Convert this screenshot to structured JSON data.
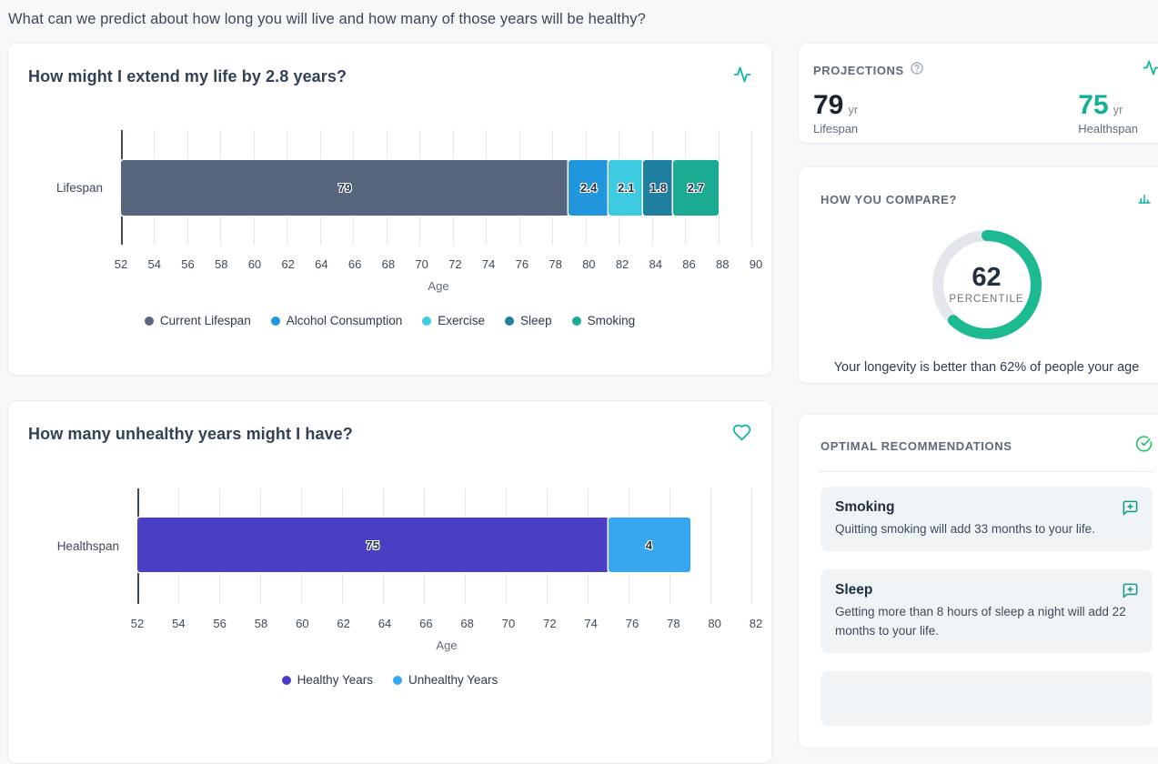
{
  "page": {
    "title": "What can we predict about how long you will live and how many of those years will be healthy?"
  },
  "colors": {
    "accent_teal": "#10b5a0",
    "gauge_green": "#1db992",
    "gauge_track": "#e3e7eb",
    "check_green": "#22c55e",
    "message_icon_teal": "#189b87",
    "healthspan_green": "#10b093"
  },
  "cards": {
    "extend": {
      "title": "How might I extend my life by 2.8 years?"
    },
    "unhealthy": {
      "title": "How many unhealthy years might I have?"
    }
  },
  "chart_data": [
    {
      "id": "extend",
      "type": "bar",
      "orientation": "horizontal-stacked",
      "category": "Lifespan",
      "xlabel": "Age",
      "x_min": 52,
      "x_max": 90,
      "x_step": 2,
      "grid": true,
      "legend_position": "bottom",
      "segments": [
        {
          "name": "Current Lifespan",
          "label": "79",
          "from": 52,
          "to": 79,
          "color": "#57657d"
        },
        {
          "name": "Alcohol Consumption",
          "label": "2.4",
          "from": 79,
          "to": 81.4,
          "color": "#2196dd"
        },
        {
          "name": "Exercise",
          "label": "2.1",
          "from": 81.4,
          "to": 83.5,
          "color": "#3ecbe2"
        },
        {
          "name": "Sleep",
          "label": "1.8",
          "from": 83.5,
          "to": 85.3,
          "color": "#1f7fa0"
        },
        {
          "name": "Smoking",
          "label": "2.7",
          "from": 85.3,
          "to": 88,
          "color": "#1bab92"
        }
      ]
    },
    {
      "id": "unhealthy",
      "type": "bar",
      "orientation": "horizontal-stacked",
      "category": "Healthspan",
      "xlabel": "Age",
      "x_min": 52,
      "x_max": 82,
      "x_step": 2,
      "grid": true,
      "legend_position": "bottom",
      "segments": [
        {
          "name": "Healthy Years",
          "label": "75",
          "from": 52,
          "to": 75,
          "color": "#4a3fc4"
        },
        {
          "name": "Unhealthy Years",
          "label": "4",
          "from": 75,
          "to": 79,
          "color": "#38a7f2"
        }
      ]
    }
  ],
  "sidebar": {
    "projections": {
      "header": "PROJECTIONS",
      "stats": [
        {
          "value": "79",
          "unit": "yr",
          "label": "Lifespan",
          "color": "#1b2433"
        },
        {
          "value": "75",
          "unit": "yr",
          "label": "Healthspan",
          "color": "#10b093"
        }
      ]
    },
    "compare": {
      "header": "HOW YOU COMPARE?",
      "percentile": 62,
      "percentile_value": "62",
      "percentile_label": "PERCENTILE",
      "caption": "Your longevity is better than 62% of people your age",
      "arc_color": "#1db992",
      "track_color": "#e3e7eb"
    },
    "recommendations": {
      "header": "OPTIMAL RECOMMENDATIONS",
      "items": [
        {
          "title": "Smoking",
          "body": "Quitting smoking will add 33 months to your life."
        },
        {
          "title": "Sleep",
          "body": "Getting more than 8 hours of sleep a night will add 22 months to your life."
        }
      ]
    }
  }
}
